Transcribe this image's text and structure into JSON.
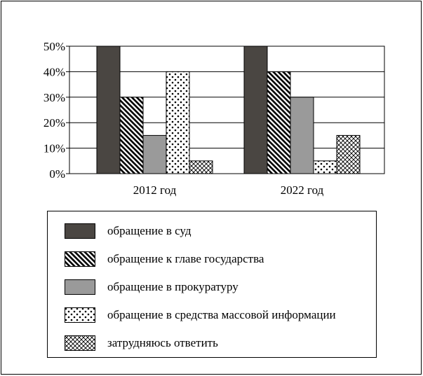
{
  "chart_data": {
    "type": "bar",
    "categories": [
      "2012 год",
      "2022 год"
    ],
    "series": [
      {
        "name": "обращение в суд",
        "values": [
          50,
          50
        ],
        "fill": "solid-dark"
      },
      {
        "name": "обращение к главе государства",
        "values": [
          30,
          40
        ],
        "fill": "diagonal-hatch"
      },
      {
        "name": "обращение в прокуратуру",
        "values": [
          15,
          30
        ],
        "fill": "solid-gray"
      },
      {
        "name": "обращение в средства массовой информации",
        "values": [
          40,
          5
        ],
        "fill": "dots"
      },
      {
        "name": "затрудняюсь ответить",
        "values": [
          5,
          15
        ],
        "fill": "crosshatch"
      }
    ],
    "yticks": [
      "0%",
      "10%",
      "20%",
      "30%",
      "40%",
      "50%"
    ],
    "ylim": [
      0,
      50
    ],
    "grid": true,
    "legend_position": "bottom",
    "colors": {
      "dark": "#4a4642",
      "gray": "#9a9a9a",
      "line": "#000000",
      "background": "#ffffff"
    }
  }
}
